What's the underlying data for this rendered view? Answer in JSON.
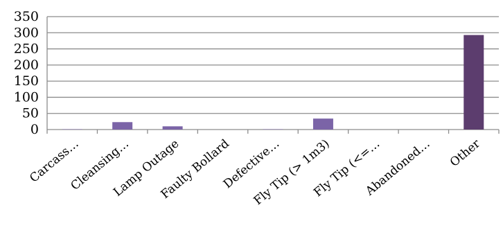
{
  "chart_data": {
    "type": "bar",
    "categories": [
      "Carcass…",
      "Cleansing…",
      "Lamp Outage",
      "Faulty Bollard",
      "Defective…",
      "Fly Tip (> 1m3)",
      "Fly Tip (<=…",
      "Abandoned…",
      "Other"
    ],
    "series": [
      {
        "values": [
          1,
          23,
          10,
          0,
          1,
          34,
          0,
          0,
          293
        ],
        "color": "#7b64a7"
      }
    ],
    "last_bar_color": "#5c3d6e",
    "ylim": [
      0,
      350
    ],
    "yticks": [
      0,
      50,
      100,
      150,
      200,
      250,
      300,
      350
    ],
    "grid": true,
    "legend": "none"
  }
}
